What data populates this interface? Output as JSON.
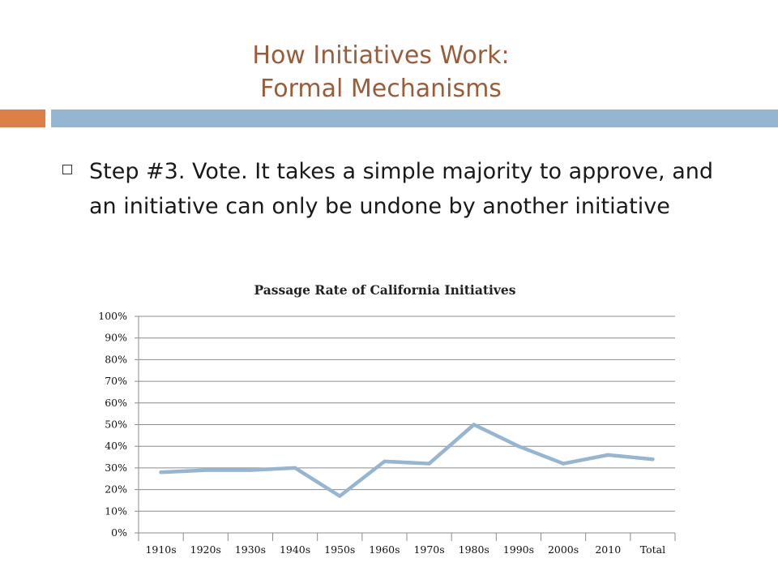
{
  "slide": {
    "title_line1": "How Initiatives Work:",
    "title_line2": "Formal Mechanisms",
    "bullet": "Step #3. Vote. It takes a simple majority to approve, and an initiative can only be undone by another initiative"
  },
  "colors": {
    "title": "#9b5c3a",
    "accent_orange": "#dd8047",
    "accent_blue": "#94b6d2",
    "line": "#94b6d2"
  },
  "chart_data": {
    "type": "line",
    "title": "Passage Rate of California Initiatives",
    "categories": [
      "1910s",
      "1920s",
      "1930s",
      "1940s",
      "1950s",
      "1960s",
      "1970s",
      "1980s",
      "1990s",
      "2000s",
      "2010",
      "Total"
    ],
    "series": [
      {
        "values": [
          0.28,
          0.29,
          0.29,
          0.3,
          0.17,
          0.33,
          0.32,
          0.5,
          0.4,
          0.32,
          0.36,
          0.34
        ]
      }
    ],
    "yticks": [
      "0%",
      "10%",
      "20%",
      "30%",
      "40%",
      "50%",
      "60%",
      "70%",
      "80%",
      "90%",
      "100%"
    ],
    "ylim": [
      0,
      1
    ],
    "grid": true,
    "legend": "none"
  }
}
